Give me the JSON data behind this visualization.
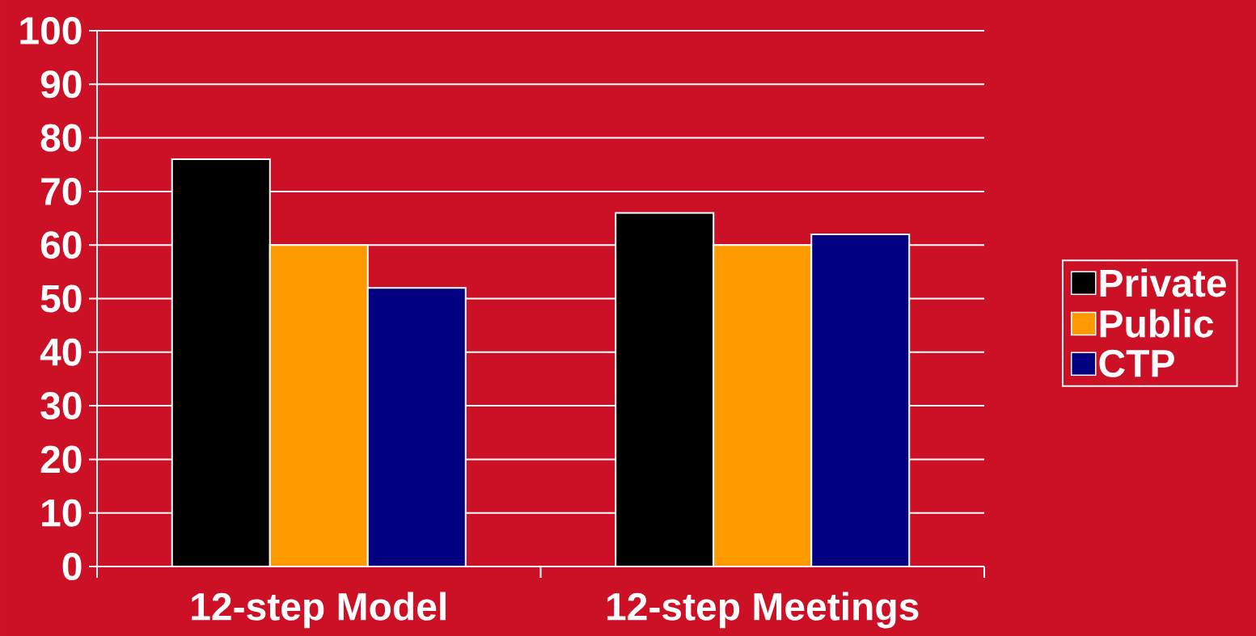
{
  "chart_data": {
    "type": "bar",
    "categories": [
      "12-step Model",
      "12-step Meetings"
    ],
    "series": [
      {
        "name": "Private",
        "color": "#000000",
        "values": [
          76,
          66
        ]
      },
      {
        "name": "Public",
        "color": "#ff9900",
        "values": [
          60,
          60
        ]
      },
      {
        "name": "CTP",
        "color": "#000080",
        "values": [
          52,
          62
        ]
      }
    ],
    "ylim": [
      0,
      100
    ],
    "yticks": [
      0,
      10,
      20,
      30,
      40,
      50,
      60,
      70,
      80,
      90,
      100
    ],
    "grid": "y",
    "legend": "right"
  }
}
